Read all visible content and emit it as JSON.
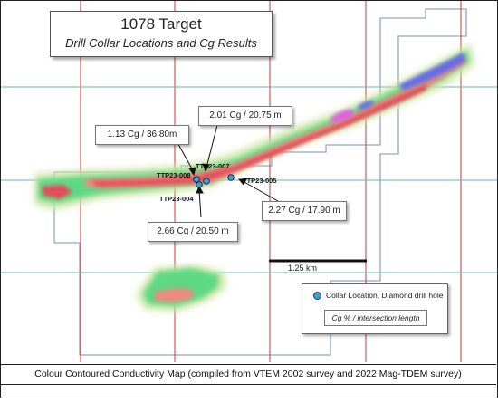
{
  "title": {
    "main": "1078 Target",
    "subtitle": "Drill Collar Locations and Cg Results"
  },
  "drill_holes": [
    {
      "id": "TTP23-008",
      "label": "TTP23-008"
    },
    {
      "id": "TTP23-007",
      "label": "TTP23-007"
    },
    {
      "id": "TTP23-004",
      "label": "TTP23-004"
    },
    {
      "id": "TTP23-005",
      "label": "TTP23-005"
    }
  ],
  "results": [
    {
      "hole": "TTP23-008",
      "text": "1.13 Cg / 36.80m"
    },
    {
      "hole": "TTP23-007",
      "text": "2.01 Cg / 20.75 m"
    },
    {
      "hole": "TTP23-005",
      "text": "2.27 Cg / 17.90 m"
    },
    {
      "hole": "TTP23-004",
      "text": "2.66 Cg / 20.50 m"
    }
  ],
  "scale_bar": {
    "label": "1.25 km"
  },
  "legend": {
    "collar_label": "Collar Location, Diamond drill hole",
    "key_label": "Cg % / intersection length"
  },
  "caption": "Colour Contoured Conductivity Map (compiled from VTEM 2002 survey and 2022 Mag-TDEM survey)",
  "colors": {
    "grid_blue": "#8fa6cc",
    "grid_teal": "#63b7b3",
    "grid_red": "#d24a4a",
    "low": "#cde6a6",
    "mid_green": "#5ed884",
    "mid_pink": "#ee8a80",
    "high_red": "#e0505a",
    "peak_magenta": "#e25fe0",
    "peak_blue": "#6a6ae6",
    "collar": "#3fa0d8"
  }
}
